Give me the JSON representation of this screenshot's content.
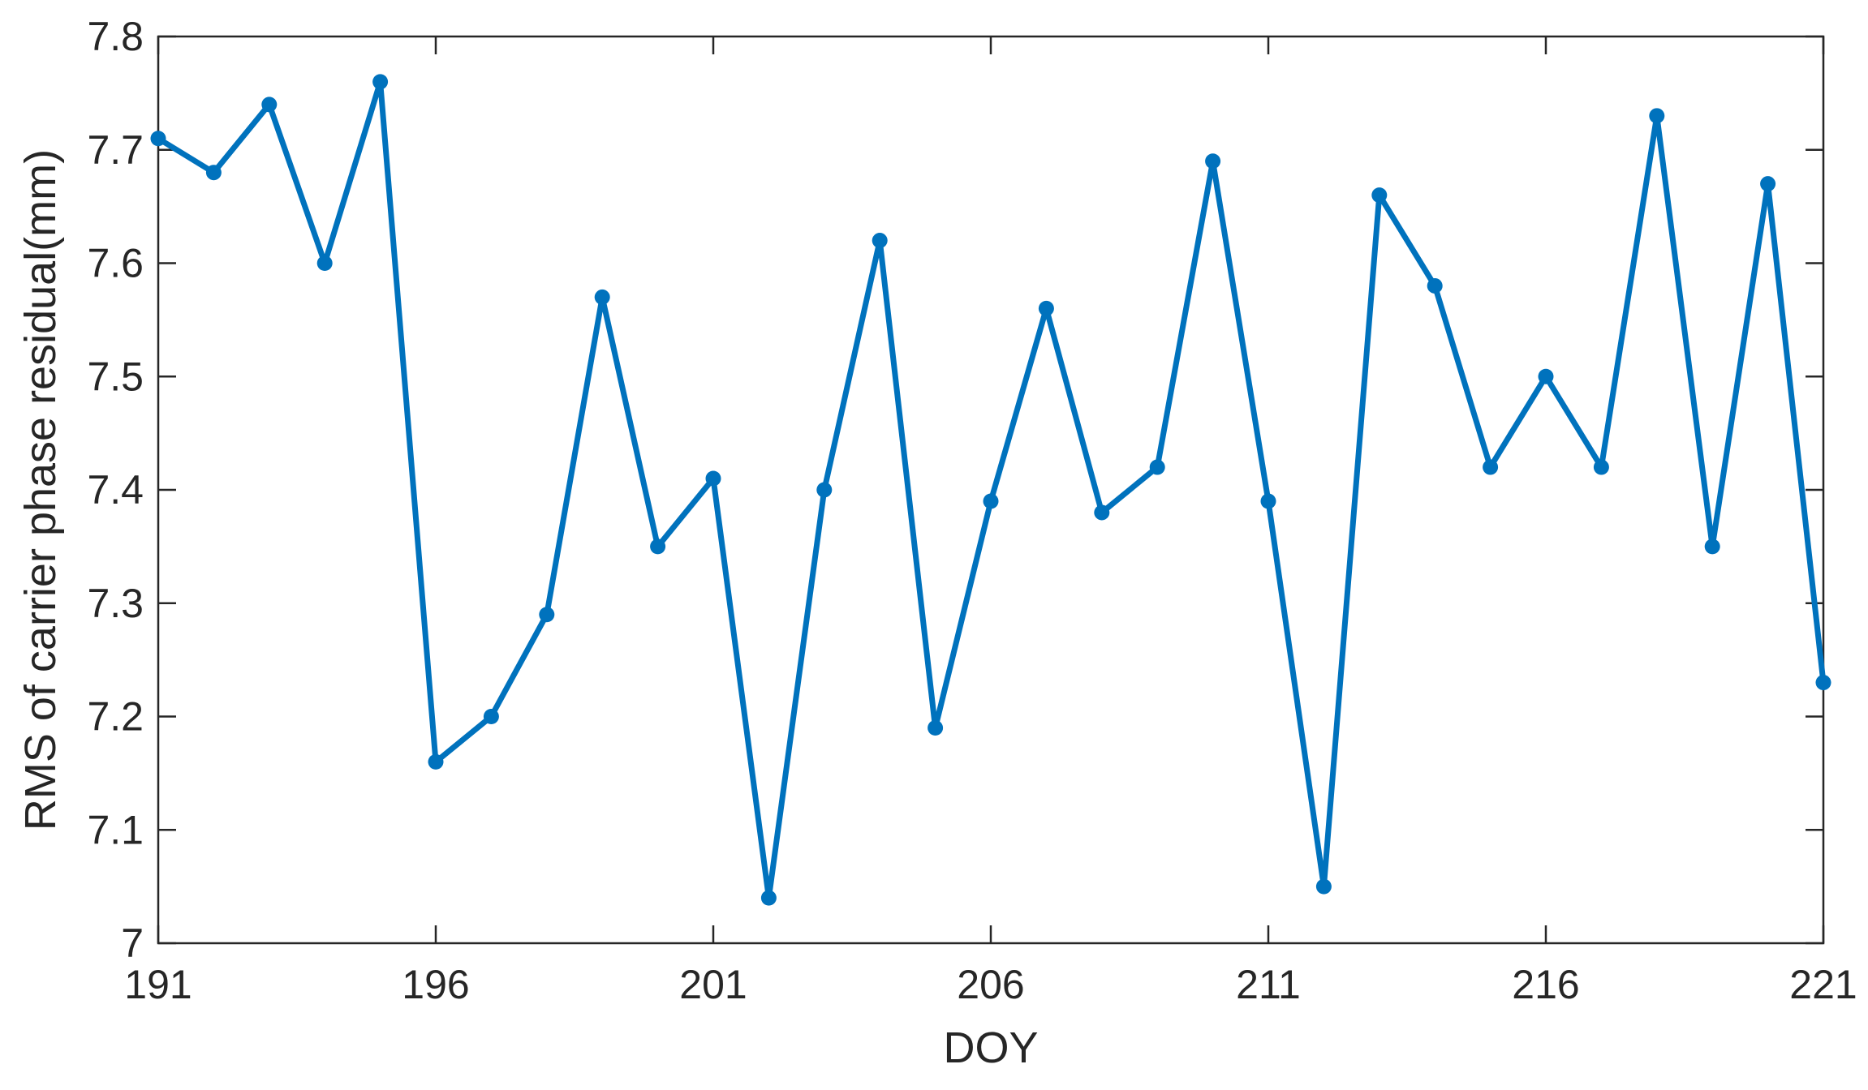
{
  "chart_data": {
    "type": "line",
    "title": "",
    "xlabel": "DOY",
    "ylabel": "RMS of carrier phase residual(mm)",
    "xlim": [
      191,
      221
    ],
    "ylim": [
      7,
      7.8
    ],
    "xticks": [
      191,
      196,
      201,
      206,
      211,
      216,
      221
    ],
    "yticks": [
      7,
      7.1,
      7.2,
      7.3,
      7.4,
      7.5,
      7.6,
      7.7,
      7.8
    ],
    "ytick_labels": [
      "7",
      "7.1",
      "7.2",
      "7.3",
      "7.4",
      "7.5",
      "7.6",
      "7.7",
      "7.8"
    ],
    "grid": false,
    "box": true,
    "series": [
      {
        "color": "#0072BD",
        "marker": "circle",
        "x": [
          191,
          192,
          193,
          194,
          195,
          196,
          197,
          198,
          199,
          200,
          201,
          202,
          203,
          204,
          205,
          206,
          207,
          208,
          209,
          210,
          211,
          212,
          213,
          214,
          215,
          216,
          217,
          218,
          219,
          220,
          221
        ],
        "values": [
          7.71,
          7.68,
          7.74,
          7.6,
          7.76,
          7.16,
          7.2,
          7.29,
          7.57,
          7.35,
          7.41,
          7.04,
          7.4,
          7.62,
          7.19,
          7.39,
          7.56,
          7.38,
          7.42,
          7.69,
          7.39,
          7.05,
          7.66,
          7.58,
          7.42,
          7.5,
          7.42,
          7.73,
          7.35,
          7.67,
          7.23
        ]
      }
    ]
  }
}
